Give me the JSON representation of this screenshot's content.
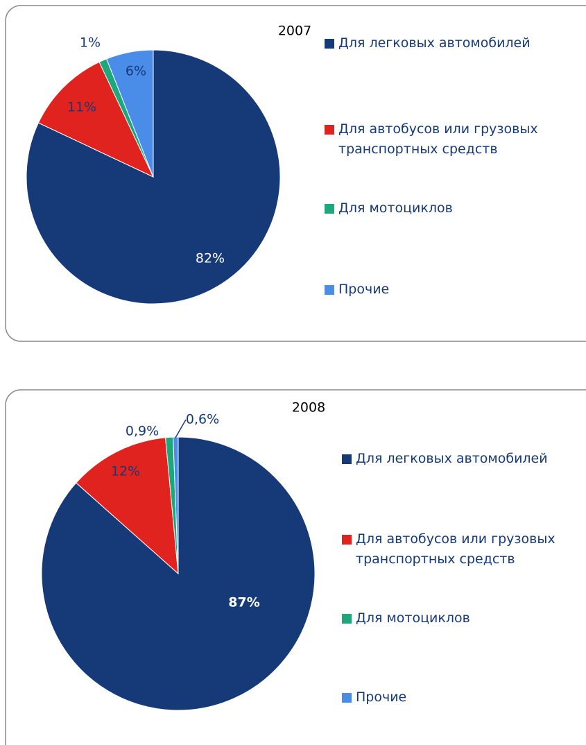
{
  "chart_data": [
    {
      "type": "pie",
      "title": "2007",
      "categories": [
        "Для легковых автомобилей",
        "Для автобусов или грузовых транспортных средств",
        "Для мотоциклов",
        "Прочие"
      ],
      "values": [
        82,
        11,
        1,
        6
      ],
      "value_labels": [
        "82%",
        "11%",
        "1%",
        "6%"
      ],
      "colors": [
        "#163a77",
        "#e0231f",
        "#1ea77a",
        "#4a8de8"
      ]
    },
    {
      "type": "pie",
      "title": "2008",
      "categories": [
        "Для легковых автомобилей",
        "Для автобусов или грузовых транспортных средств",
        "Для мотоциклов",
        "Прочие"
      ],
      "values": [
        87,
        12,
        0.9,
        0.6
      ],
      "value_labels": [
        "87%",
        "12%",
        "0,9%",
        "0,6%"
      ],
      "colors": [
        "#163a77",
        "#e0231f",
        "#1ea77a",
        "#4a8de8"
      ]
    }
  ]
}
